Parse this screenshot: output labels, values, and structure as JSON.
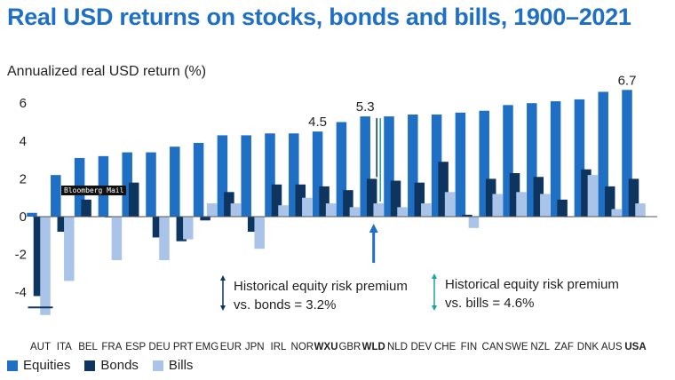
{
  "title": "Real USD returns on stocks, bonds and bills, 1900–2021",
  "watermark": "Bloomberg Mail",
  "colors": {
    "equities": "#1f6fc5",
    "bonds": "#0e3460",
    "bills": "#a9c4e8",
    "title": "#1f6fc5",
    "annotation_bonds": "#0e3460",
    "annotation_bills": "#1aa39a"
  },
  "chart_data": {
    "type": "bar",
    "title": "Real USD returns on stocks, bonds and bills, 1900–2021",
    "ylabel": "Annualized real USD return (%)",
    "xlabel": "",
    "ylim": [
      -5.6,
      7.0
    ],
    "yticks": [
      -4,
      -2,
      0,
      2,
      4,
      6
    ],
    "grid": false,
    "categories": [
      "AUT",
      "ITA",
      "BEL",
      "FRA",
      "ESP",
      "DEU",
      "PRT",
      "EMG",
      "EUR",
      "JPN",
      "IRL",
      "NOR",
      "WXU",
      "GBR",
      "WLD",
      "NLD",
      "DEV",
      "CHE",
      "FIN",
      "CAN",
      "SWE",
      "NZL",
      "ZAF",
      "DNK",
      "AUS",
      "USA"
    ],
    "bold_categories": [
      "WXU",
      "WLD",
      "USA"
    ],
    "series": [
      {
        "name": "Equities",
        "values": [
          0.2,
          2.2,
          3.1,
          3.2,
          3.4,
          3.4,
          3.7,
          3.9,
          4.3,
          4.3,
          4.4,
          4.4,
          4.5,
          5.0,
          5.3,
          5.3,
          5.4,
          5.4,
          5.5,
          5.6,
          5.9,
          6.0,
          6.1,
          6.2,
          6.6,
          6.7
        ]
      },
      {
        "name": "Bonds",
        "values": [
          -4.2,
          -0.8,
          0.9,
          0.0,
          1.8,
          -1.1,
          -1.3,
          -0.2,
          1.3,
          -0.8,
          1.7,
          1.7,
          1.6,
          1.4,
          2.0,
          1.9,
          1.8,
          2.9,
          0.1,
          2.0,
          2.3,
          2.1,
          0.9,
          2.5,
          1.6,
          2.0
        ]
      },
      {
        "name": "Bills",
        "values": [
          -5.2,
          -3.4,
          0.0,
          -2.3,
          0.0,
          -2.3,
          -1.2,
          0.7,
          0.7,
          -1.7,
          0.6,
          1.0,
          0.7,
          0.5,
          0.7,
          0.5,
          0.7,
          1.3,
          -0.6,
          1.2,
          1.3,
          1.2,
          0.0,
          2.2,
          0.4,
          0.7
        ]
      }
    ],
    "data_labels": [
      {
        "category": "WXU",
        "text": "4.5"
      },
      {
        "category": "WLD",
        "text": "5.3"
      },
      {
        "category": "USA",
        "text": "6.7"
      }
    ],
    "annotations": {
      "premium_bonds": {
        "line1": "Historical equity risk premium",
        "line2": "vs. bonds = 3.2%"
      },
      "premium_bills": {
        "line1": "Historical equity risk premium",
        "line2": "vs. bills = 4.6%"
      }
    },
    "legend": {
      "position": "bottom-left",
      "entries": [
        "Equities",
        "Bonds",
        "Bills"
      ]
    }
  }
}
